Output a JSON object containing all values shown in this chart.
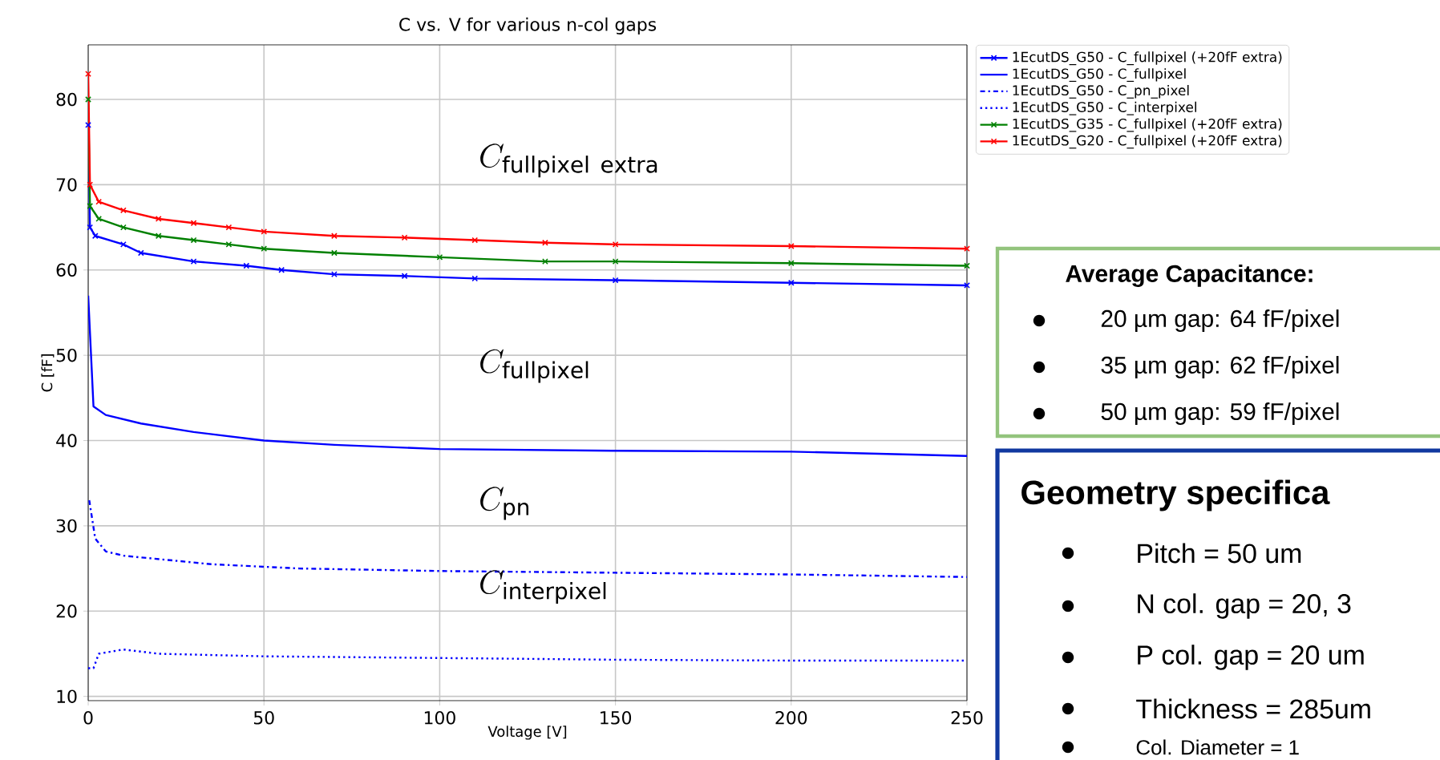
{
  "chart_data": {
    "type": "line",
    "title": "C vs. V for various n-col gaps",
    "xlabel": "Voltage [V]",
    "ylabel": "C [fF]",
    "xlim": [
      0,
      250
    ],
    "ylim": [
      9.5,
      86.4
    ],
    "xticks": [
      0,
      50,
      100,
      150,
      200,
      250
    ],
    "yticks": [
      10,
      20,
      30,
      40,
      50,
      60,
      70,
      80
    ],
    "grid": true,
    "legend": "top right",
    "series": [
      {
        "name": "1EcutDS_G50 - C_fullpixel (+20fF extra)",
        "color": "#0000ff",
        "marker": "cross",
        "line_style": "solid",
        "x": [
          0,
          0.5,
          2,
          10,
          15,
          30,
          45,
          55,
          70,
          90,
          110,
          150,
          200,
          250
        ],
        "values": [
          77,
          65,
          64,
          63,
          62,
          61,
          60.5,
          60,
          59.5,
          59.3,
          59,
          58.8,
          58.5,
          58.2
        ]
      },
      {
        "name": "1EcutDS_G50 - C_fullpixel",
        "color": "#0000ff",
        "marker": "none",
        "line_style": "solid",
        "x": [
          0,
          1.5,
          5,
          15,
          30,
          50,
          70,
          100,
          150,
          200,
          250
        ],
        "values": [
          57,
          44,
          43,
          42,
          41,
          40,
          39.5,
          39,
          38.8,
          38.7,
          38.2
        ]
      },
      {
        "name": "1EcutDS_G50 - C_pn_pixel",
        "color": "#0000ff",
        "marker": "none",
        "line_style": "dashdot",
        "x": [
          0.3,
          2,
          5,
          10,
          35,
          60,
          100,
          150,
          200,
          250
        ],
        "values": [
          33,
          28.5,
          27,
          26.5,
          25.5,
          25,
          24.7,
          24.5,
          24.3,
          24
        ]
      },
      {
        "name": "1EcutDS_G50 - C_interpixel",
        "color": "#0000ff",
        "marker": "none",
        "line_style": "dotted",
        "x": [
          0,
          1.5,
          3,
          10,
          20,
          50,
          100,
          150,
          200,
          250
        ],
        "values": [
          13.3,
          13.3,
          15,
          15.5,
          15,
          14.7,
          14.5,
          14.3,
          14.2,
          14.2
        ]
      },
      {
        "name": "1EcutDS_G35 - C_fullpixel (+20fF extra)",
        "color": "#008000",
        "marker": "cross",
        "line_style": "solid",
        "x": [
          0,
          0.5,
          3,
          10,
          20,
          30,
          40,
          50,
          70,
          100,
          130,
          150,
          200,
          250
        ],
        "values": [
          80,
          67.5,
          66,
          65,
          64,
          63.5,
          63,
          62.5,
          62,
          61.5,
          61,
          61,
          60.8,
          60.5
        ]
      },
      {
        "name": "1EcutDS_G20 - C_fullpixel (+20fF extra)",
        "color": "#ff0000",
        "marker": "cross",
        "line_style": "solid",
        "x": [
          0,
          0.5,
          3,
          10,
          20,
          30,
          40,
          50,
          70,
          90,
          110,
          130,
          150,
          200,
          250
        ],
        "values": [
          83,
          70,
          68,
          67,
          66,
          65.5,
          65,
          64.5,
          64,
          63.8,
          63.5,
          63.2,
          63,
          62.8,
          62.5
        ]
      }
    ],
    "annotations": [
      "C_{\\mathrm{fullpixel\\ extra}}",
      "C_{\\mathrm{fullpixel}}",
      "C_{\\mathrm{pn}}",
      "C_{\\mathrm{interpixel}}",
      "Average Capacitance:",
      "20 µm gap: 64 fF/pixel",
      "35 µm gap: 62 fF/pixel",
      "50 µm gap: 59 fF/pixel",
      "Geometry specifica",
      "Pitch = 50 um",
      "N col. gap = 20, 3",
      "P col. gap = 20 um",
      "Thickness = 285um",
      "Col. Diameter = 1"
    ]
  }
}
